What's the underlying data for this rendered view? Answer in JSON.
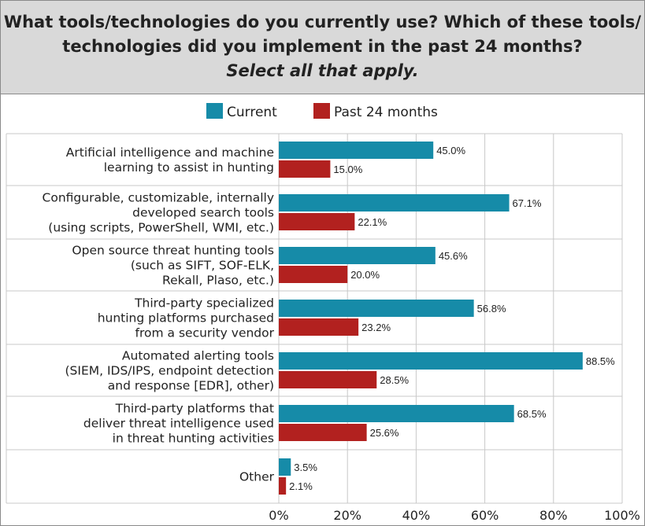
{
  "header": {
    "title_line1": "What tools/technologies do you currently use? Which of these tools/",
    "title_line2": "technologies did you implement in the past 24 months?",
    "subtitle": "Select all that apply."
  },
  "chart_data": {
    "type": "bar",
    "orientation": "horizontal",
    "title": "What tools/technologies do you currently use? Which of these tools/technologies did you implement in the past 24 months?",
    "subtitle": "Select all that apply.",
    "categories": [
      [
        "Artificial intelligence and machine",
        "learning to assist in hunting"
      ],
      [
        "Configurable, customizable, internally",
        "developed search tools",
        "(using scripts, PowerShell, WMI, etc.)"
      ],
      [
        "Open source threat hunting tools",
        "(such as SIFT, SOF-ELK,",
        "Rekall, Plaso, etc.)"
      ],
      [
        "Third-party specialized",
        "hunting platforms purchased",
        "from a security vendor"
      ],
      [
        "Automated alerting tools",
        "(SIEM, IDS/IPS, endpoint detection",
        "and response [EDR], other)"
      ],
      [
        "Third-party platforms that",
        "deliver threat intelligence used",
        "in threat hunting activities"
      ],
      [
        "Other"
      ]
    ],
    "series": [
      {
        "name": "Current",
        "color": "#168ba8",
        "values": [
          45.0,
          67.1,
          45.6,
          56.8,
          88.5,
          68.5,
          3.5
        ],
        "labels": [
          "45.0%",
          "67.1%",
          "45.6%",
          "56.8%",
          "88.5%",
          "68.5%",
          "3.5%"
        ]
      },
      {
        "name": "Past 24 months",
        "color": "#b2211f",
        "values": [
          15.0,
          22.1,
          20.0,
          23.2,
          28.5,
          25.6,
          2.1
        ],
        "labels": [
          "15.0%",
          "22.1%",
          "20.0%",
          "23.2%",
          "28.5%",
          "25.6%",
          "2.1%"
        ]
      }
    ],
    "xlim": [
      0,
      100
    ],
    "xticks": [
      "0%",
      "20%",
      "40%",
      "60%",
      "80%",
      "100%"
    ],
    "grid": true,
    "legend_position": "top"
  }
}
